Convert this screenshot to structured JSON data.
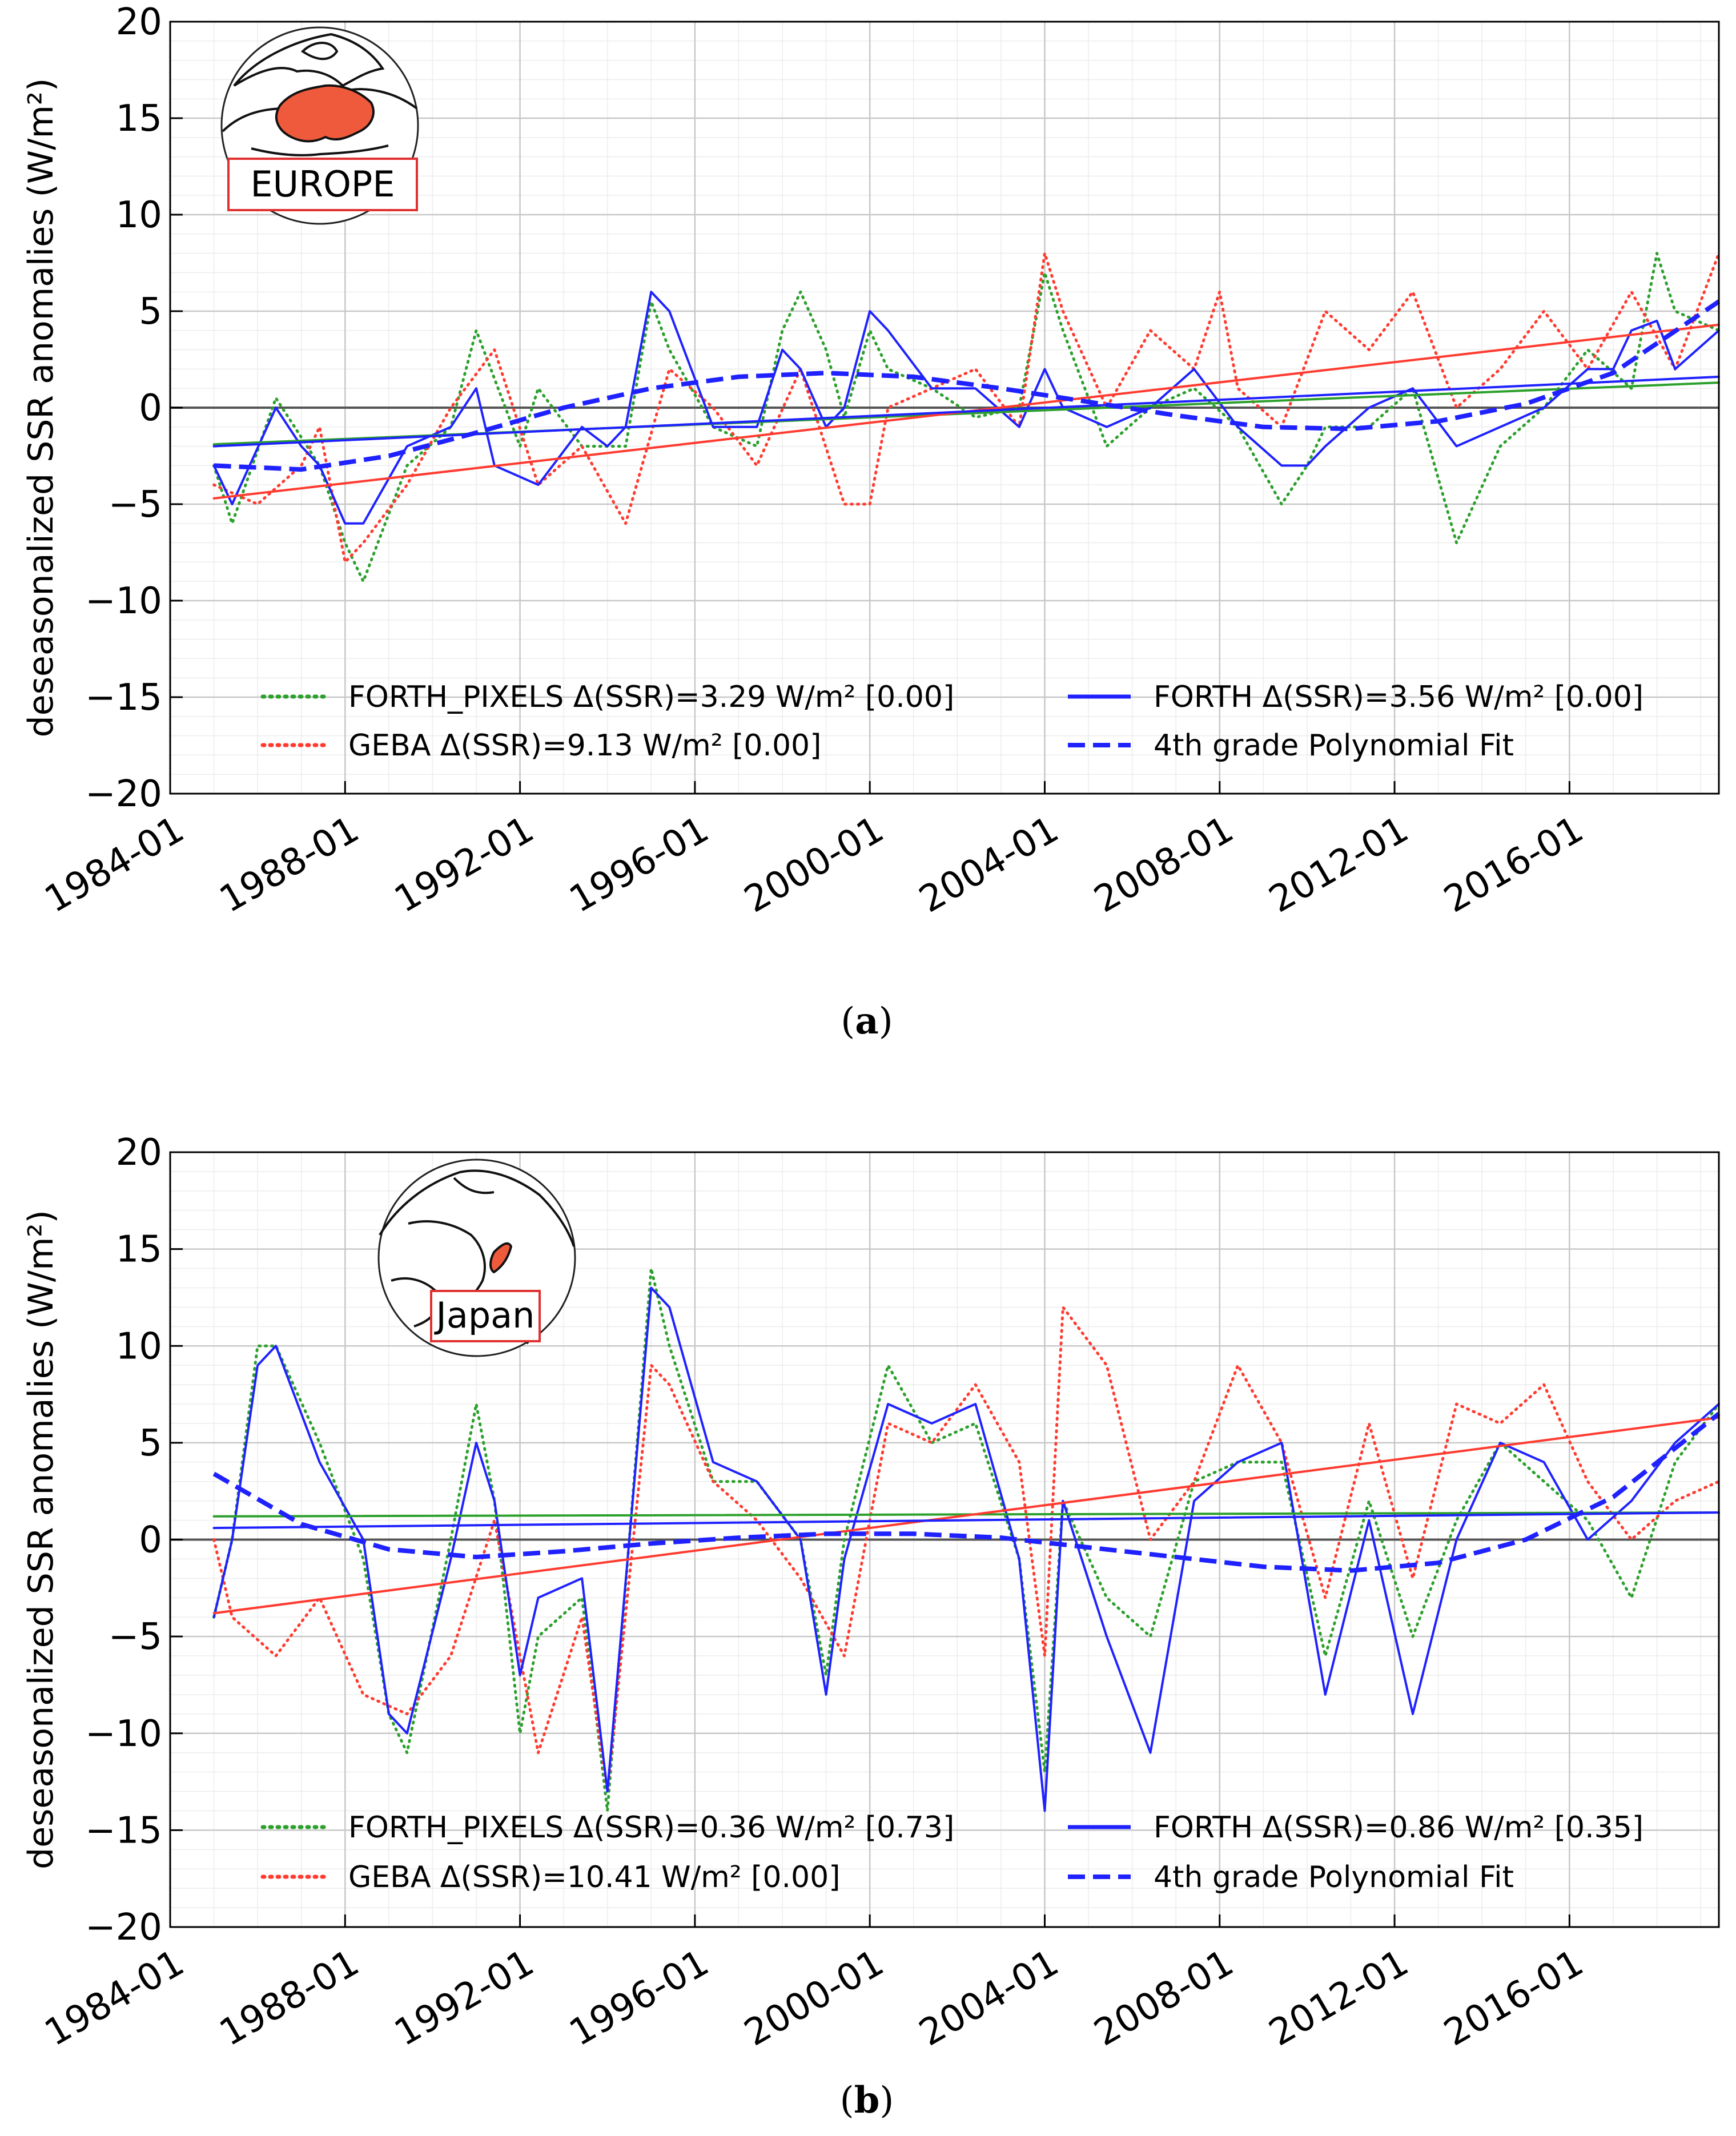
{
  "figure": {
    "panels": [
      {
        "caption_letter": "a",
        "region_label": "EUROPE"
      },
      {
        "caption_letter": "b",
        "region_label": "Japan"
      }
    ]
  },
  "colors": {
    "forth_pixels": "#2ca02c",
    "geba": "#ff3b30",
    "forth": "#1f22ff",
    "zero_line": "#555555",
    "grid_major": "#c8c8c8",
    "grid_minor": "#ececec",
    "region_box": "#e03030",
    "europe_fill": "#f05a3c"
  },
  "chart_data": [
    {
      "type": "line",
      "panel": "a",
      "ylabel": "deseasonalized SSR anomalies (W/m²)",
      "ylim": [
        -20,
        20
      ],
      "y_ticks": [
        "20",
        "15",
        "10",
        "5",
        "0",
        "−5",
        "−10",
        "−15",
        "−20"
      ],
      "x_ticks": [
        "1984-01",
        "1988-01",
        "1992-01",
        "1996-01",
        "2000-01",
        "2004-01",
        "2008-01",
        "2012-01",
        "2016-01"
      ],
      "x_range": [
        "1984-01",
        "2019-06"
      ],
      "grid": true,
      "legend_position": "bottom",
      "legend": [
        {
          "label": "FORTH_PIXELS Δ(SSR)=3.29 W/m² [0.00]",
          "style": "dotted",
          "color": "green"
        },
        {
          "label": "GEBA Δ(SSR)=9.13 W/m² [0.00]",
          "style": "dotted",
          "color": "red"
        },
        {
          "label": "FORTH Δ(SSR)=3.56 W/m² [0.00]",
          "style": "solid",
          "color": "blue"
        },
        {
          "label": "4th grade Polynomial Fit",
          "style": "dashed",
          "color": "blue"
        }
      ],
      "series": [
        {
          "name": "FORTH_PIXELS",
          "style": "dotted",
          "color": "green",
          "x": [
            "1985-01",
            "1985-06",
            "1986-06",
            "1987-06",
            "1988-01",
            "1988-06",
            "1989-06",
            "1990-06",
            "1991-01",
            "1992-01",
            "1992-06",
            "1993-06",
            "1994-06",
            "1995-01",
            "1995-06",
            "1996-06",
            "1997-06",
            "1998-01",
            "1998-06",
            "1999-01",
            "1999-06",
            "2000-01",
            "2000-06",
            "2001-06",
            "2002-06",
            "2003-06",
            "2004-01",
            "2004-06",
            "2005-06",
            "2006-06",
            "2007-06",
            "2008-06",
            "2009-06",
            "2010-01",
            "2010-06",
            "2011-06",
            "2012-06",
            "2013-06",
            "2014-06",
            "2015-06",
            "2016-06",
            "2017-06",
            "2018-01",
            "2018-06",
            "2019-06"
          ],
          "y": [
            -3,
            -6,
            0.5,
            -3,
            -7,
            -9,
            -3,
            -1,
            4,
            -2,
            1,
            -2,
            -2,
            5.5,
            3,
            -1,
            -2,
            4,
            6,
            3,
            -0.5,
            4,
            2,
            1,
            -0.5,
            0,
            7,
            4,
            -2,
            0,
            1,
            -1,
            -5,
            -3,
            -1,
            -1,
            1,
            -7,
            -2,
            0,
            3,
            1,
            8,
            5,
            4
          ]
        },
        {
          "name": "GEBA",
          "style": "dotted",
          "color": "red",
          "x": [
            "1985-01",
            "1986-01",
            "1987-01",
            "1987-06",
            "1988-01",
            "1988-06",
            "1989-06",
            "1990-06",
            "1991-06",
            "1992-06",
            "1993-06",
            "1994-06",
            "1995-06",
            "1996-06",
            "1997-06",
            "1998-06",
            "1999-06",
            "2000-01",
            "2000-06",
            "2001-06",
            "2002-06",
            "2003-06",
            "2004-01",
            "2004-06",
            "2005-06",
            "2006-06",
            "2007-06",
            "2008-01",
            "2008-06",
            "2009-06",
            "2010-06",
            "2011-06",
            "2012-06",
            "2013-06",
            "2014-06",
            "2015-06",
            "2016-06",
            "2017-06",
            "2018-06",
            "2019-06"
          ],
          "y": [
            -4,
            -5,
            -3,
            -1,
            -8,
            -7,
            -4,
            0,
            3,
            -4,
            -2,
            -6,
            2,
            0,
            -3,
            2,
            -5,
            -5,
            0,
            1,
            2,
            -1,
            8,
            5,
            0,
            4,
            2,
            6,
            1,
            -1,
            5,
            3,
            6,
            0,
            2,
            5,
            2,
            6,
            2,
            8
          ]
        },
        {
          "name": "FORTH",
          "style": "solid",
          "color": "blue",
          "x": [
            "1985-01",
            "1985-06",
            "1986-06",
            "1987-01",
            "1987-06",
            "1988-01",
            "1988-06",
            "1989-06",
            "1990-06",
            "1991-01",
            "1991-06",
            "1992-06",
            "1993-06",
            "1994-01",
            "1994-06",
            "1995-01",
            "1995-06",
            "1996-06",
            "1997-06",
            "1998-01",
            "1998-06",
            "1999-01",
            "1999-06",
            "2000-01",
            "2000-06",
            "2001-06",
            "2002-06",
            "2003-06",
            "2004-01",
            "2004-06",
            "2005-06",
            "2006-06",
            "2007-06",
            "2008-06",
            "2009-06",
            "2010-01",
            "2010-06",
            "2011-06",
            "2012-06",
            "2013-06",
            "2014-06",
            "2015-06",
            "2016-06",
            "2017-01",
            "2017-06",
            "2018-01",
            "2018-06",
            "2019-06"
          ],
          "y": [
            -3,
            -5,
            0,
            -2,
            -3,
            -6,
            -6,
            -2,
            -1,
            1,
            -3,
            -4,
            -1,
            -2,
            -1,
            6,
            5,
            -1,
            -1,
            3,
            2,
            -1,
            0,
            5,
            4,
            1,
            1,
            -1,
            2,
            0,
            -1,
            0,
            2,
            -1,
            -3,
            -3,
            -2,
            0,
            1,
            -2,
            -1,
            0,
            2,
            2,
            4,
            4.5,
            2,
            4
          ]
        },
        {
          "name": "FORTH_PIXELS trend",
          "style": "solid",
          "color": "green",
          "x": [
            "1985-01",
            "2019-06"
          ],
          "y": [
            -1.9,
            1.3
          ]
        },
        {
          "name": "GEBA trend",
          "style": "solid",
          "color": "red",
          "x": [
            "1985-01",
            "2019-06"
          ],
          "y": [
            -4.7,
            4.3
          ]
        },
        {
          "name": "FORTH trend",
          "style": "solid",
          "color": "blue",
          "x": [
            "1985-01",
            "2019-06"
          ],
          "y": [
            -2.0,
            1.6
          ]
        },
        {
          "name": "4th grade Polynomial Fit",
          "style": "dashed",
          "color": "blue",
          "x": [
            "1985-01",
            "1987-01",
            "1989-01",
            "1991-01",
            "1993-01",
            "1995-01",
            "1997-01",
            "1999-01",
            "2001-01",
            "2003-01",
            "2005-01",
            "2007-01",
            "2009-01",
            "2011-01",
            "2013-01",
            "2015-01",
            "2017-01",
            "2019-06"
          ],
          "y": [
            -3.0,
            -3.2,
            -2.5,
            -1.3,
            0,
            1.0,
            1.6,
            1.8,
            1.6,
            1.0,
            0.3,
            -0.4,
            -1.0,
            -1.1,
            -0.7,
            0.2,
            1.8,
            5.5
          ]
        }
      ]
    },
    {
      "type": "line",
      "panel": "b",
      "ylabel": "deseasonalized SSR anomalies (W/m²)",
      "ylim": [
        -20,
        20
      ],
      "y_ticks": [
        "20",
        "15",
        "10",
        "5",
        "0",
        "−5",
        "−10",
        "−15",
        "−20"
      ],
      "x_ticks": [
        "1984-01",
        "1988-01",
        "1992-01",
        "1996-01",
        "2000-01",
        "2004-01",
        "2008-01",
        "2012-01",
        "2016-01"
      ],
      "x_range": [
        "1984-01",
        "2019-06"
      ],
      "grid": true,
      "legend_position": "bottom",
      "legend": [
        {
          "label": "FORTH_PIXELS Δ(SSR)=0.36 W/m² [0.73]",
          "style": "dotted",
          "color": "green"
        },
        {
          "label": "GEBA Δ(SSR)=10.41 W/m² [0.00]",
          "style": "dotted",
          "color": "red"
        },
        {
          "label": "FORTH Δ(SSR)=0.86 W/m² [0.35]",
          "style": "solid",
          "color": "blue"
        },
        {
          "label": "4th grade Polynomial Fit",
          "style": "dashed",
          "color": "blue"
        }
      ],
      "series": [
        {
          "name": "FORTH_PIXELS",
          "style": "dotted",
          "color": "green",
          "x": [
            "1985-01",
            "1985-06",
            "1986-01",
            "1986-06",
            "1987-06",
            "1988-06",
            "1989-01",
            "1989-06",
            "1990-06",
            "1991-01",
            "1991-06",
            "1992-01",
            "1992-06",
            "1993-06",
            "1994-01",
            "1995-01",
            "1995-06",
            "1996-06",
            "1997-06",
            "1998-06",
            "1999-01",
            "1999-06",
            "2000-06",
            "2001-06",
            "2002-06",
            "2003-06",
            "2004-01",
            "2004-06",
            "2005-06",
            "2006-06",
            "2007-06",
            "2008-06",
            "2009-06",
            "2010-06",
            "2011-06",
            "2012-06",
            "2013-06",
            "2014-06",
            "2015-06",
            "2016-06",
            "2017-06",
            "2018-06",
            "2019-06"
          ],
          "y": [
            -4,
            0,
            10,
            10,
            5,
            -1,
            -9,
            -11,
            0,
            7,
            2,
            -10,
            -5,
            -3,
            -14,
            14,
            10,
            3,
            3,
            0,
            -7,
            0,
            9,
            5,
            6,
            -1,
            -12,
            2,
            -3,
            -5,
            3,
            4,
            4,
            -6,
            2,
            -5,
            1,
            5,
            3,
            1,
            -3,
            4,
            7
          ]
        },
        {
          "name": "GEBA",
          "style": "dotted",
          "color": "red",
          "x": [
            "1985-01",
            "1985-06",
            "1986-06",
            "1987-06",
            "1988-06",
            "1989-06",
            "1990-06",
            "1991-06",
            "1992-06",
            "1993-06",
            "1994-01",
            "1995-01",
            "1995-06",
            "1996-06",
            "1997-06",
            "1998-06",
            "1999-06",
            "2000-06",
            "2001-06",
            "2002-06",
            "2003-06",
            "2004-01",
            "2004-06",
            "2005-06",
            "2006-06",
            "2007-06",
            "2008-06",
            "2009-06",
            "2010-06",
            "2011-06",
            "2012-06",
            "2013-06",
            "2014-06",
            "2015-06",
            "2016-06",
            "2017-06",
            "2018-06",
            "2019-06"
          ],
          "y": [
            0,
            -4,
            -6,
            -3,
            -8,
            -9,
            -6,
            1,
            -11,
            -4,
            -13,
            9,
            8,
            3,
            1,
            -2,
            -6,
            6,
            5,
            8,
            4,
            -6,
            12,
            9,
            0,
            3,
            9,
            5,
            -3,
            6,
            -2,
            7,
            6,
            8,
            3,
            0,
            2,
            3
          ]
        },
        {
          "name": "FORTH",
          "style": "solid",
          "color": "blue",
          "x": [
            "1985-01",
            "1985-06",
            "1986-01",
            "1986-06",
            "1987-06",
            "1988-06",
            "1989-01",
            "1989-06",
            "1990-06",
            "1991-01",
            "1991-06",
            "1992-01",
            "1992-06",
            "1993-06",
            "1994-01",
            "1995-01",
            "1995-06",
            "1996-06",
            "1997-06",
            "1998-06",
            "1999-01",
            "1999-06",
            "2000-06",
            "2001-06",
            "2002-06",
            "2003-06",
            "2004-01",
            "2004-06",
            "2005-06",
            "2006-06",
            "2007-06",
            "2008-06",
            "2009-06",
            "2010-06",
            "2011-06",
            "2012-06",
            "2013-06",
            "2014-06",
            "2015-06",
            "2016-06",
            "2017-06",
            "2018-06",
            "2019-06"
          ],
          "y": [
            -4,
            0,
            9,
            10,
            4,
            0,
            -9,
            -10,
            -1,
            5,
            2,
            -7,
            -3,
            -2,
            -13,
            13,
            12,
            4,
            3,
            0,
            -8,
            -1,
            7,
            6,
            7,
            -1,
            -14,
            2,
            -5,
            -11,
            2,
            4,
            5,
            -8,
            1,
            -9,
            0,
            5,
            4,
            0,
            2,
            5,
            7
          ]
        },
        {
          "name": "FORTH_PIXELS trend",
          "style": "solid",
          "color": "green",
          "x": [
            "1985-01",
            "2019-06"
          ],
          "y": [
            1.2,
            1.4
          ]
        },
        {
          "name": "GEBA trend",
          "style": "solid",
          "color": "red",
          "x": [
            "1985-01",
            "2019-06"
          ],
          "y": [
            -3.8,
            6.3
          ]
        },
        {
          "name": "FORTH trend",
          "style": "solid",
          "color": "blue",
          "x": [
            "1985-01",
            "2019-06"
          ],
          "y": [
            0.6,
            1.4
          ]
        },
        {
          "name": "4th grade Polynomial Fit",
          "style": "dashed",
          "color": "blue",
          "x": [
            "1985-01",
            "1987-01",
            "1989-01",
            "1991-01",
            "1993-01",
            "1995-01",
            "1997-01",
            "1999-01",
            "2001-01",
            "2003-01",
            "2005-01",
            "2007-01",
            "2009-01",
            "2011-01",
            "2013-01",
            "2015-01",
            "2017-01",
            "2019-06"
          ],
          "y": [
            3.4,
            0.8,
            -0.5,
            -0.9,
            -0.6,
            -0.2,
            0.1,
            0.3,
            0.3,
            0.1,
            -0.4,
            -0.9,
            -1.4,
            -1.6,
            -1.2,
            0.0,
            2.2,
            6.5
          ]
        }
      ]
    }
  ]
}
